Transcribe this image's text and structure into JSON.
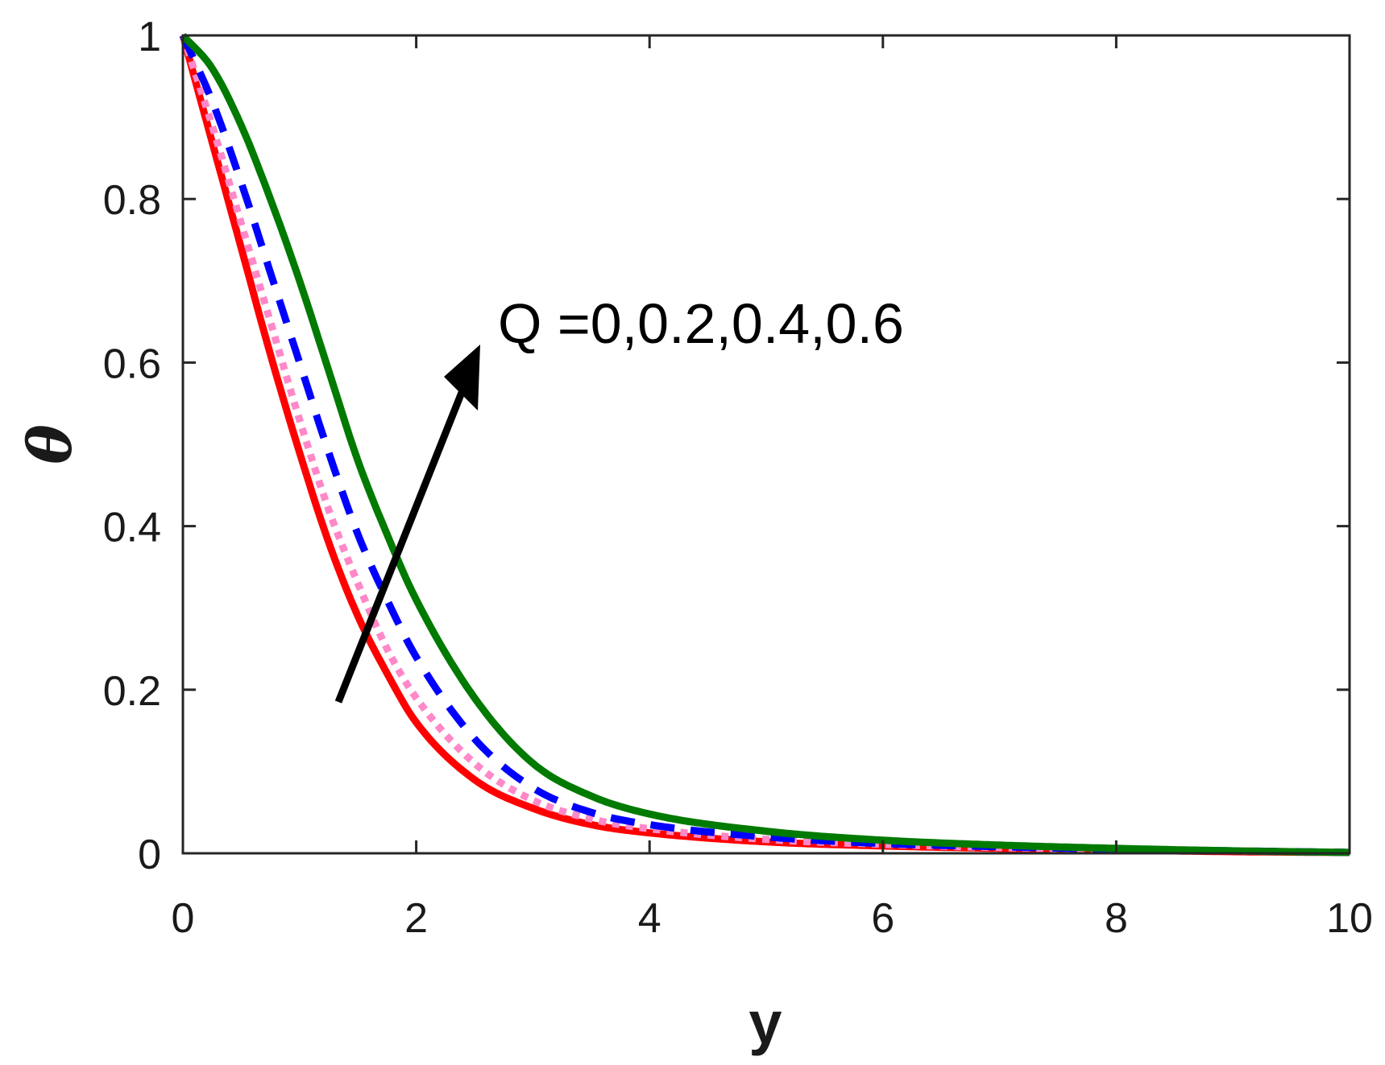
{
  "chart_data": {
    "type": "line",
    "xlabel": "y",
    "ylabel": "θ",
    "xlim": [
      0,
      10
    ],
    "ylim": [
      0,
      1
    ],
    "xticks": [
      "0",
      "2",
      "4",
      "6",
      "8",
      "10"
    ],
    "yticks": [
      "0",
      "0.2",
      "0.4",
      "0.6",
      "0.8",
      "1"
    ],
    "grid": false,
    "annotation": "Q =0,0.2,0.4,0.6",
    "series": [
      {
        "color": "#ff0000",
        "style": "solid",
        "x": [
          0,
          0.25,
          0.5,
          0.75,
          1,
          1.25,
          1.5,
          1.75,
          2,
          2.5,
          3,
          3.5,
          4,
          5,
          6,
          7,
          8,
          9,
          10
        ],
        "y": [
          1,
          0.87,
          0.74,
          0.61,
          0.49,
          0.38,
          0.29,
          0.22,
          0.16,
          0.09,
          0.055,
          0.035,
          0.025,
          0.014,
          0.009,
          0.006,
          0.004,
          0.002,
          0.001
        ]
      },
      {
        "color": "#ff88c8",
        "style": "dotted",
        "x": [
          0,
          0.25,
          0.5,
          0.75,
          1,
          1.25,
          1.5,
          1.75,
          2,
          2.5,
          3,
          3.5,
          4,
          5,
          6,
          7,
          8,
          9,
          10
        ],
        "y": [
          1,
          0.89,
          0.77,
          0.65,
          0.53,
          0.42,
          0.33,
          0.25,
          0.19,
          0.11,
          0.065,
          0.042,
          0.03,
          0.017,
          0.011,
          0.007,
          0.005,
          0.003,
          0.001
        ]
      },
      {
        "color": "#0000ff",
        "style": "dashed",
        "x": [
          0,
          0.25,
          0.5,
          0.75,
          1,
          1.25,
          1.5,
          1.75,
          2,
          2.5,
          3,
          3.5,
          4,
          5,
          6,
          7,
          8,
          9,
          10
        ],
        "y": [
          1,
          0.92,
          0.82,
          0.71,
          0.6,
          0.49,
          0.39,
          0.31,
          0.24,
          0.14,
          0.08,
          0.05,
          0.035,
          0.02,
          0.012,
          0.008,
          0.005,
          0.003,
          0.001
        ]
      },
      {
        "color": "#007a00",
        "style": "solid",
        "x": [
          0,
          0.25,
          0.5,
          0.75,
          1,
          1.25,
          1.5,
          1.75,
          2,
          2.5,
          3,
          3.5,
          4,
          5,
          6,
          7,
          8,
          9,
          10
        ],
        "y": [
          1,
          0.96,
          0.89,
          0.8,
          0.7,
          0.59,
          0.48,
          0.39,
          0.31,
          0.19,
          0.11,
          0.07,
          0.048,
          0.027,
          0.016,
          0.01,
          0.006,
          0.003,
          0.001
        ]
      }
    ]
  }
}
